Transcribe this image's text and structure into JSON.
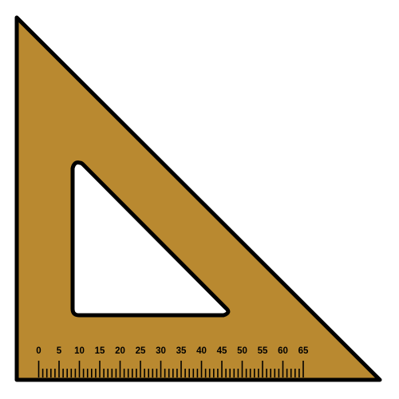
{
  "colors": {
    "body": "#b98930",
    "outline": "#000000",
    "cutout": "#ffffff"
  },
  "ruler": {
    "labels": [
      "0",
      "5",
      "10",
      "15",
      "20",
      "25",
      "30",
      "35",
      "40",
      "45",
      "50",
      "55",
      "60",
      "65"
    ]
  }
}
